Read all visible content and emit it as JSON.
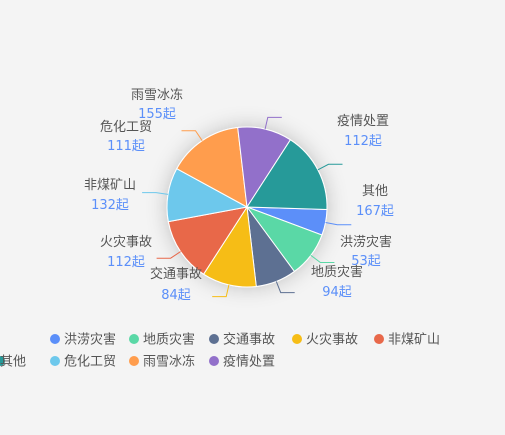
{
  "chart_data": {
    "type": "pie",
    "unit_suffix": "起",
    "categories": [
      "洪涝灾害",
      "地质灾害",
      "交通事故",
      "火灾事故",
      "非煤矿山",
      "危化工贸",
      "雨雪冰冻",
      "疫情处置",
      "其他"
    ],
    "values": [
      53,
      94,
      84,
      112,
      132,
      111,
      155,
      112,
      167
    ],
    "colors": [
      "#5b8ff9",
      "#5ad8a6",
      "#5d7092",
      "#f6bd16",
      "#e8684a",
      "#6dc8ec",
      "#ff9d4d",
      "#9270ca",
      "#269a99"
    ],
    "legend_position": "bottom"
  }
}
